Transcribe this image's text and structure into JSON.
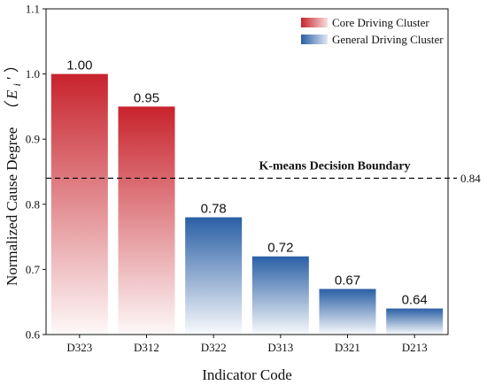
{
  "chart_data": {
    "type": "bar",
    "categories": [
      "D323",
      "D312",
      "D322",
      "D313",
      "D321",
      "D213"
    ],
    "values": [
      1.0,
      0.95,
      0.78,
      0.72,
      0.67,
      0.64
    ],
    "value_labels": [
      "1.00",
      "0.95",
      "0.78",
      "0.72",
      "0.67",
      "0.64"
    ],
    "cluster": [
      "core",
      "core",
      "general",
      "general",
      "general",
      "general"
    ],
    "xlabel": "Indicator Code",
    "ylabel": "Normalized Cause Degree",
    "ylabel_symbol": "（ E",
    "ylabel_sub": "i",
    "ylabel_close": " ′ ）",
    "ylim": [
      0.6,
      1.1
    ],
    "yticks": [
      0.6,
      0.7,
      0.8,
      0.9,
      1.0,
      1.1
    ],
    "ytick_labels": [
      "0.6",
      "0.7",
      "0.8",
      "0.9",
      "1.0",
      "1.1"
    ],
    "grid": false,
    "legend_position": "top-right",
    "legend": [
      {
        "key": "core",
        "label": "Core Driving Cluster",
        "color": "#c8232c"
      },
      {
        "key": "general",
        "label": "General Driving Cluster",
        "color": "#2a5fa5"
      }
    ],
    "threshold": {
      "value": 0.84,
      "value_label": "0.84",
      "label": "K-means Decision Boundary"
    }
  }
}
